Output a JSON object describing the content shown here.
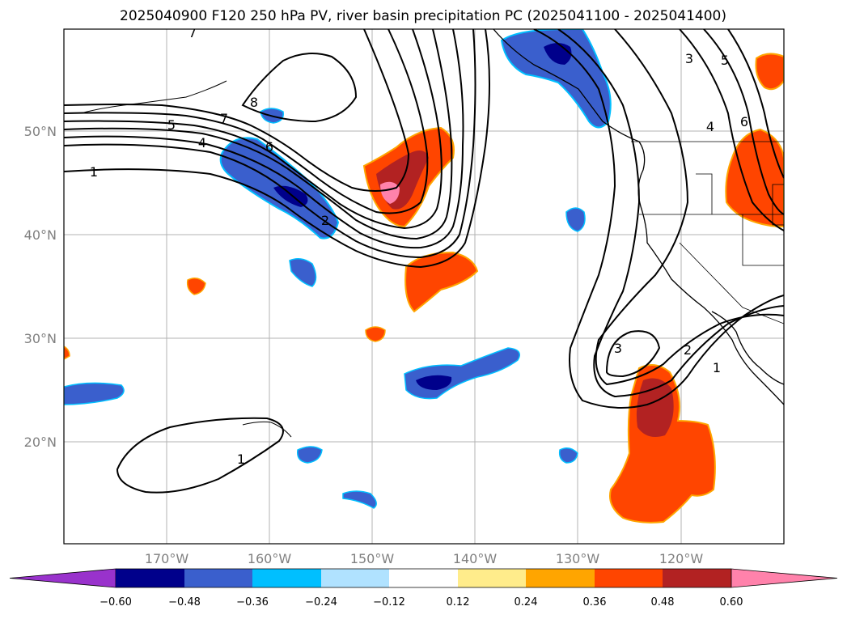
{
  "title": "2025040900 F120 250 hPa PV, river basin precipitation PC (2025041100 - 2025041400)",
  "map": {
    "lat_labels": [
      "50°N",
      "40°N",
      "30°N",
      "20°N"
    ],
    "lon_labels": [
      "170°W",
      "160°W",
      "150°W",
      "140°W",
      "130°W",
      "120°W"
    ],
    "gridlines": true,
    "pv_contour_labels": [
      "1",
      "1",
      "1",
      "2",
      "2",
      "3",
      "3",
      "4",
      "4",
      "5",
      "5",
      "6",
      "6",
      "7",
      "7",
      "8"
    ]
  },
  "colorbar": {
    "ticks": [
      "−0.60",
      "−0.48",
      "−0.36",
      "−0.24",
      "−0.12",
      "0.12",
      "0.24",
      "0.36",
      "0.48",
      "0.60"
    ],
    "colors": [
      "#9932cc",
      "#00008b",
      "#3a5fcd",
      "#00bfff",
      "#b0e2ff",
      "#ffffff",
      "#ffec8b",
      "#ffa500",
      "#ff4500",
      "#b22222",
      "#ff82ab"
    ],
    "extend": "both"
  }
}
